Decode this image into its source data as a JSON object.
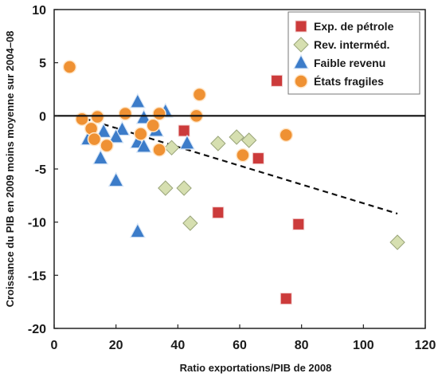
{
  "chart_data": {
    "type": "scatter",
    "xlabel": "Ratio exportations/PIB de 2008",
    "ylabel": "Croissance du PIB en 2009 moins moyenne sur 2004–08",
    "xlim": [
      0,
      120
    ],
    "ylim": [
      -20,
      10
    ],
    "x_ticks": [
      "0",
      "20",
      "40",
      "60",
      "80",
      "100",
      "120"
    ],
    "y_ticks": [
      "10",
      "5",
      "0",
      "-5",
      "-10",
      "-15",
      "-20"
    ],
    "x_tick_values": [
      0,
      20,
      40,
      60,
      80,
      100,
      120
    ],
    "y_tick_values": [
      10,
      5,
      0,
      -5,
      -10,
      -15,
      -20
    ],
    "zero_line": true,
    "grid": false,
    "legend_position": "top-right",
    "trendline": {
      "x": [
        7,
        111
      ],
      "y": [
        0,
        -9.2
      ],
      "style": "dashed"
    },
    "series": [
      {
        "name": "Exp. de pétrole",
        "marker": "square",
        "color": "#cc3b3b",
        "points": [
          {
            "x": 72,
            "y": 3.3
          },
          {
            "x": 42,
            "y": -1.4
          },
          {
            "x": 66,
            "y": -4.0
          },
          {
            "x": 53,
            "y": -9.1
          },
          {
            "x": 79,
            "y": -10.2
          },
          {
            "x": 75,
            "y": -17.2
          }
        ]
      },
      {
        "name": "Rev. interméd.",
        "marker": "diamond",
        "color": "#d6dfb0",
        "points": [
          {
            "x": 59,
            "y": -2.0
          },
          {
            "x": 63,
            "y": -2.3
          },
          {
            "x": 53,
            "y": -2.6
          },
          {
            "x": 38,
            "y": -3.0
          },
          {
            "x": 36,
            "y": -6.8
          },
          {
            "x": 42,
            "y": -6.8
          },
          {
            "x": 44,
            "y": -10.1
          },
          {
            "x": 111,
            "y": -11.9
          }
        ]
      },
      {
        "name": "Faible revenu",
        "marker": "triangle",
        "color": "#3c7cc9",
        "points": [
          {
            "x": 27,
            "y": 1.3
          },
          {
            "x": 36,
            "y": 0.4
          },
          {
            "x": 29,
            "y": -0.2
          },
          {
            "x": 16,
            "y": -1.5
          },
          {
            "x": 22,
            "y": -1.3
          },
          {
            "x": 33,
            "y": -1.4
          },
          {
            "x": 11,
            "y": -2.2
          },
          {
            "x": 20,
            "y": -2.0
          },
          {
            "x": 27,
            "y": -2.5
          },
          {
            "x": 29,
            "y": -2.9
          },
          {
            "x": 43,
            "y": -2.6
          },
          {
            "x": 15,
            "y": -4.0
          },
          {
            "x": 20,
            "y": -6.1
          },
          {
            "x": 27,
            "y": -10.9
          }
        ]
      },
      {
        "name": "États fragiles",
        "marker": "circle",
        "color": "#ef9133",
        "points": [
          {
            "x": 5,
            "y": 4.6
          },
          {
            "x": 47,
            "y": 2.0
          },
          {
            "x": 9,
            "y": -0.3
          },
          {
            "x": 14,
            "y": -0.1
          },
          {
            "x": 23,
            "y": 0.2
          },
          {
            "x": 34,
            "y": 0.2
          },
          {
            "x": 46,
            "y": 0.0
          },
          {
            "x": 12,
            "y": -1.2
          },
          {
            "x": 32,
            "y": -0.9
          },
          {
            "x": 28,
            "y": -1.7
          },
          {
            "x": 13,
            "y": -2.2
          },
          {
            "x": 17,
            "y": -2.8
          },
          {
            "x": 34,
            "y": -3.2
          },
          {
            "x": 61,
            "y": -3.7
          },
          {
            "x": 75,
            "y": -1.8
          }
        ]
      }
    ]
  }
}
